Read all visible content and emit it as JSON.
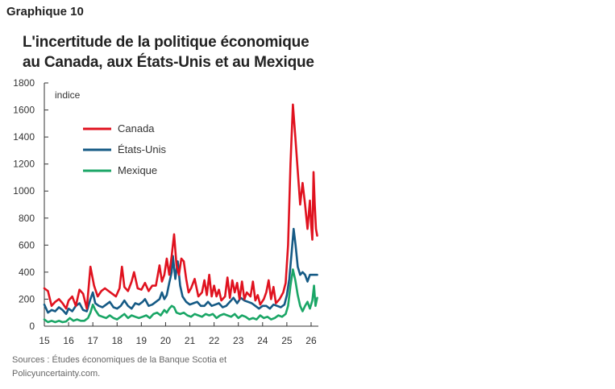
{
  "header": {
    "graphique_label": "Graphique 10",
    "title_line1": "L'incertitude de la politique économique",
    "title_line2": "au Canada, aux États-Unis et au Mexique"
  },
  "footer": {
    "sources_line1": "Sources : Études économiques de la Banque Scotia et",
    "sources_line2": "Policyuncertainty.com."
  },
  "colors": {
    "Canada": "#e0121f",
    "États-Unis": "#155a85",
    "Mexique": "#1aa666",
    "axis": "#333333"
  },
  "chart_data": {
    "type": "line",
    "ylabel": "indice",
    "ylim": [
      0,
      1800
    ],
    "yticks": [
      0,
      200,
      400,
      600,
      800,
      1000,
      1200,
      1400,
      1600,
      1800
    ],
    "xlim": [
      15,
      26.3
    ],
    "xticks": [
      "15",
      "16",
      "17",
      "18",
      "19",
      "20",
      "21",
      "22",
      "23",
      "24",
      "25",
      "26"
    ],
    "legend": {
      "position": "top-left",
      "entries": [
        "Canada",
        "États-Unis",
        "Mexique"
      ]
    },
    "grid": false,
    "series": [
      {
        "name": "Canada",
        "points": [
          [
            15.0,
            280
          ],
          [
            15.15,
            260
          ],
          [
            15.3,
            150
          ],
          [
            15.45,
            180
          ],
          [
            15.6,
            200
          ],
          [
            15.75,
            170
          ],
          [
            15.9,
            130
          ],
          [
            16.0,
            190
          ],
          [
            16.15,
            220
          ],
          [
            16.3,
            150
          ],
          [
            16.45,
            270
          ],
          [
            16.6,
            240
          ],
          [
            16.75,
            130
          ],
          [
            16.9,
            440
          ],
          [
            17.05,
            300
          ],
          [
            17.2,
            220
          ],
          [
            17.35,
            260
          ],
          [
            17.5,
            280
          ],
          [
            17.65,
            260
          ],
          [
            17.8,
            240
          ],
          [
            17.95,
            220
          ],
          [
            18.1,
            280
          ],
          [
            18.2,
            440
          ],
          [
            18.3,
            290
          ],
          [
            18.45,
            260
          ],
          [
            18.6,
            330
          ],
          [
            18.7,
            400
          ],
          [
            18.85,
            280
          ],
          [
            19.0,
            270
          ],
          [
            19.15,
            320
          ],
          [
            19.3,
            260
          ],
          [
            19.45,
            300
          ],
          [
            19.6,
            300
          ],
          [
            19.75,
            450
          ],
          [
            19.85,
            330
          ],
          [
            19.95,
            380
          ],
          [
            20.05,
            500
          ],
          [
            20.15,
            380
          ],
          [
            20.25,
            520
          ],
          [
            20.35,
            680
          ],
          [
            20.45,
            450
          ],
          [
            20.55,
            380
          ],
          [
            20.65,
            500
          ],
          [
            20.75,
            480
          ],
          [
            20.85,
            350
          ],
          [
            20.95,
            250
          ],
          [
            21.05,
            280
          ],
          [
            21.2,
            350
          ],
          [
            21.35,
            220
          ],
          [
            21.5,
            250
          ],
          [
            21.6,
            340
          ],
          [
            21.7,
            230
          ],
          [
            21.8,
            380
          ],
          [
            21.9,
            220
          ],
          [
            22.0,
            300
          ],
          [
            22.1,
            220
          ],
          [
            22.2,
            270
          ],
          [
            22.3,
            190
          ],
          [
            22.45,
            220
          ],
          [
            22.55,
            360
          ],
          [
            22.65,
            210
          ],
          [
            22.75,
            340
          ],
          [
            22.85,
            250
          ],
          [
            22.95,
            320
          ],
          [
            23.05,
            200
          ],
          [
            23.15,
            330
          ],
          [
            23.25,
            200
          ],
          [
            23.35,
            250
          ],
          [
            23.5,
            220
          ],
          [
            23.6,
            330
          ],
          [
            23.7,
            190
          ],
          [
            23.8,
            230
          ],
          [
            23.9,
            160
          ],
          [
            24.05,
            200
          ],
          [
            24.15,
            250
          ],
          [
            24.25,
            340
          ],
          [
            24.35,
            200
          ],
          [
            24.45,
            290
          ],
          [
            24.55,
            170
          ],
          [
            24.7,
            200
          ],
          [
            24.85,
            250
          ],
          [
            24.95,
            320
          ],
          [
            25.05,
            600
          ],
          [
            25.15,
            1200
          ],
          [
            25.25,
            1640
          ],
          [
            25.35,
            1400
          ],
          [
            25.45,
            1150
          ],
          [
            25.55,
            900
          ],
          [
            25.65,
            1060
          ],
          [
            25.75,
            900
          ],
          [
            25.85,
            720
          ],
          [
            25.95,
            930
          ],
          [
            26.0,
            750
          ],
          [
            26.05,
            640
          ],
          [
            26.1,
            1140
          ],
          [
            26.15,
            900
          ],
          [
            26.2,
            720
          ],
          [
            26.25,
            670
          ]
        ]
      },
      {
        "name": "États-Unis",
        "points": [
          [
            15.0,
            160
          ],
          [
            15.15,
            100
          ],
          [
            15.3,
            120
          ],
          [
            15.45,
            110
          ],
          [
            15.6,
            140
          ],
          [
            15.75,
            120
          ],
          [
            15.9,
            90
          ],
          [
            16.0,
            130
          ],
          [
            16.15,
            110
          ],
          [
            16.3,
            150
          ],
          [
            16.45,
            170
          ],
          [
            16.6,
            120
          ],
          [
            16.75,
            110
          ],
          [
            16.9,
            200
          ],
          [
            17.0,
            250
          ],
          [
            17.1,
            170
          ],
          [
            17.25,
            150
          ],
          [
            17.4,
            140
          ],
          [
            17.55,
            160
          ],
          [
            17.7,
            180
          ],
          [
            17.85,
            140
          ],
          [
            18.0,
            130
          ],
          [
            18.15,
            150
          ],
          [
            18.3,
            190
          ],
          [
            18.45,
            150
          ],
          [
            18.6,
            130
          ],
          [
            18.75,
            170
          ],
          [
            18.9,
            160
          ],
          [
            19.05,
            180
          ],
          [
            19.15,
            200
          ],
          [
            19.3,
            150
          ],
          [
            19.45,
            160
          ],
          [
            19.6,
            180
          ],
          [
            19.75,
            200
          ],
          [
            19.85,
            250
          ],
          [
            19.95,
            200
          ],
          [
            20.05,
            230
          ],
          [
            20.15,
            320
          ],
          [
            20.25,
            400
          ],
          [
            20.3,
            520
          ],
          [
            20.4,
            350
          ],
          [
            20.5,
            480
          ],
          [
            20.6,
            300
          ],
          [
            20.7,
            220
          ],
          [
            20.85,
            180
          ],
          [
            21.0,
            160
          ],
          [
            21.15,
            170
          ],
          [
            21.3,
            180
          ],
          [
            21.45,
            150
          ],
          [
            21.6,
            150
          ],
          [
            21.75,
            180
          ],
          [
            21.9,
            150
          ],
          [
            22.05,
            160
          ],
          [
            22.2,
            170
          ],
          [
            22.35,
            140
          ],
          [
            22.5,
            150
          ],
          [
            22.65,
            180
          ],
          [
            22.8,
            210
          ],
          [
            22.95,
            170
          ],
          [
            23.1,
            210
          ],
          [
            23.25,
            190
          ],
          [
            23.4,
            180
          ],
          [
            23.55,
            170
          ],
          [
            23.7,
            150
          ],
          [
            23.85,
            130
          ],
          [
            24.0,
            150
          ],
          [
            24.15,
            150
          ],
          [
            24.3,
            130
          ],
          [
            24.45,
            160
          ],
          [
            24.6,
            150
          ],
          [
            24.75,
            140
          ],
          [
            24.9,
            160
          ],
          [
            25.0,
            230
          ],
          [
            25.1,
            350
          ],
          [
            25.2,
            550
          ],
          [
            25.28,
            720
          ],
          [
            25.36,
            600
          ],
          [
            25.45,
            440
          ],
          [
            25.55,
            380
          ],
          [
            25.65,
            400
          ],
          [
            25.75,
            380
          ],
          [
            25.85,
            330
          ],
          [
            25.95,
            380
          ],
          [
            26.05,
            380
          ],
          [
            26.15,
            380
          ],
          [
            26.25,
            380
          ]
        ]
      },
      {
        "name": "Mexique",
        "points": [
          [
            15.0,
            50
          ],
          [
            15.15,
            30
          ],
          [
            15.3,
            40
          ],
          [
            15.45,
            30
          ],
          [
            15.6,
            40
          ],
          [
            15.75,
            30
          ],
          [
            15.9,
            35
          ],
          [
            16.05,
            60
          ],
          [
            16.2,
            40
          ],
          [
            16.35,
            50
          ],
          [
            16.5,
            40
          ],
          [
            16.65,
            40
          ],
          [
            16.8,
            60
          ],
          [
            16.9,
            100
          ],
          [
            17.0,
            160
          ],
          [
            17.1,
            120
          ],
          [
            17.25,
            80
          ],
          [
            17.4,
            70
          ],
          [
            17.55,
            60
          ],
          [
            17.7,
            80
          ],
          [
            17.85,
            60
          ],
          [
            18.0,
            50
          ],
          [
            18.15,
            70
          ],
          [
            18.3,
            90
          ],
          [
            18.45,
            60
          ],
          [
            18.6,
            80
          ],
          [
            18.75,
            70
          ],
          [
            18.9,
            60
          ],
          [
            19.05,
            70
          ],
          [
            19.2,
            80
          ],
          [
            19.35,
            60
          ],
          [
            19.5,
            90
          ],
          [
            19.65,
            100
          ],
          [
            19.8,
            80
          ],
          [
            19.95,
            120
          ],
          [
            20.05,
            100
          ],
          [
            20.15,
            130
          ],
          [
            20.25,
            150
          ],
          [
            20.35,
            140
          ],
          [
            20.45,
            100
          ],
          [
            20.6,
            90
          ],
          [
            20.75,
            100
          ],
          [
            20.9,
            80
          ],
          [
            21.05,
            70
          ],
          [
            21.2,
            90
          ],
          [
            21.35,
            80
          ],
          [
            21.5,
            70
          ],
          [
            21.65,
            90
          ],
          [
            21.8,
            80
          ],
          [
            21.95,
            90
          ],
          [
            22.1,
            60
          ],
          [
            22.25,
            80
          ],
          [
            22.4,
            90
          ],
          [
            22.55,
            80
          ],
          [
            22.7,
            70
          ],
          [
            22.85,
            90
          ],
          [
            23.0,
            60
          ],
          [
            23.15,
            80
          ],
          [
            23.3,
            70
          ],
          [
            23.45,
            50
          ],
          [
            23.6,
            60
          ],
          [
            23.75,
            50
          ],
          [
            23.9,
            80
          ],
          [
            24.05,
            60
          ],
          [
            24.2,
            70
          ],
          [
            24.35,
            50
          ],
          [
            24.5,
            60
          ],
          [
            24.65,
            80
          ],
          [
            24.8,
            70
          ],
          [
            24.95,
            90
          ],
          [
            25.05,
            150
          ],
          [
            25.15,
            300
          ],
          [
            25.25,
            420
          ],
          [
            25.35,
            340
          ],
          [
            25.45,
            230
          ],
          [
            25.55,
            150
          ],
          [
            25.65,
            110
          ],
          [
            25.75,
            150
          ],
          [
            25.85,
            180
          ],
          [
            25.95,
            130
          ],
          [
            26.05,
            190
          ],
          [
            26.12,
            300
          ],
          [
            26.18,
            150
          ],
          [
            26.25,
            210
          ]
        ]
      }
    ]
  }
}
